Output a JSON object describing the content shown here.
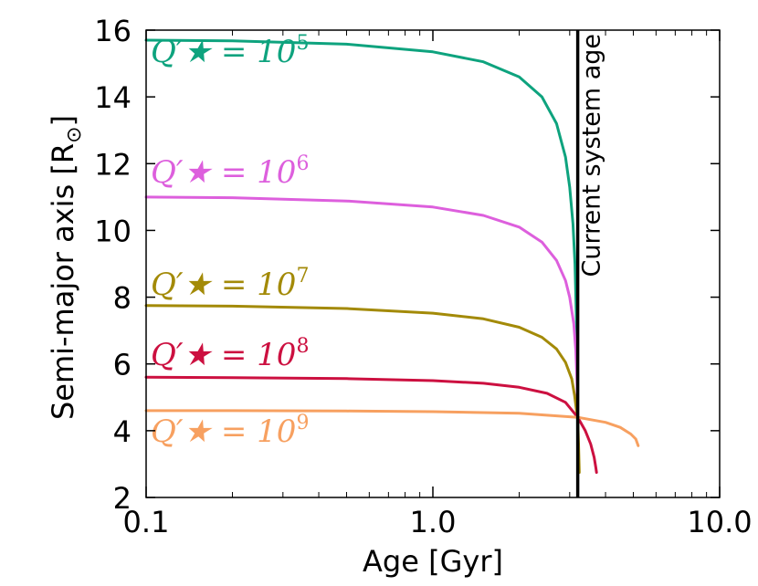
{
  "chart_data": {
    "type": "line",
    "title": "",
    "xlabel": "Age [Gyr]",
    "ylabel": "Semi-major axis [R",
    "ylabel_sub": "⊙",
    "ylabel_close": "]",
    "xscale": "log",
    "xlim": [
      0.1,
      10.0
    ],
    "ylim": [
      2,
      16
    ],
    "x_ticks": [
      0.1,
      1.0,
      10.0
    ],
    "x_tick_labels": [
      "0.1",
      "1.0",
      "10.0"
    ],
    "y_ticks": [
      2,
      4,
      6,
      8,
      10,
      12,
      14,
      16
    ],
    "y_tick_labels": [
      "2",
      "4",
      "6",
      "8",
      "10",
      "12",
      "14",
      "16"
    ],
    "vline": {
      "x": 3.2,
      "label": "Current system age",
      "color": "#000000"
    },
    "series": [
      {
        "name": "Q'★ = 10^5",
        "label_base": "Q′★ = 10",
        "label_exp": "5",
        "color": "#0ea37e",
        "x": [
          0.1,
          0.2,
          0.5,
          1.0,
          1.5,
          2.0,
          2.4,
          2.7,
          2.9,
          3.0,
          3.08,
          3.13,
          3.17,
          3.19,
          3.2
        ],
        "y": [
          15.7,
          15.68,
          15.58,
          15.35,
          15.05,
          14.6,
          14.0,
          13.2,
          12.2,
          11.3,
          10.2,
          9.0,
          7.2,
          5.6,
          2.7
        ]
      },
      {
        "name": "Q'★ = 10^6",
        "label_base": "Q′★ = 10",
        "label_exp": "6",
        "color": "#dd5fdd",
        "x": [
          0.1,
          0.2,
          0.5,
          1.0,
          1.5,
          2.0,
          2.4,
          2.7,
          2.9,
          3.0,
          3.1,
          3.15,
          3.18,
          3.2
        ],
        "y": [
          11.0,
          10.98,
          10.88,
          10.7,
          10.45,
          10.1,
          9.65,
          9.1,
          8.5,
          8.0,
          7.2,
          6.4,
          5.5,
          4.4
        ]
      },
      {
        "name": "Q'★ = 10^7",
        "label_base": "Q′★ = 10",
        "label_exp": "7",
        "color": "#a38a08",
        "x": [
          0.1,
          0.2,
          0.5,
          1.0,
          1.5,
          2.0,
          2.4,
          2.7,
          2.9,
          3.05,
          3.12,
          3.17,
          3.2,
          3.22,
          3.24
        ],
        "y": [
          7.75,
          7.73,
          7.66,
          7.52,
          7.35,
          7.1,
          6.8,
          6.45,
          6.05,
          5.55,
          5.05,
          4.6,
          4.35,
          3.6,
          2.75
        ]
      },
      {
        "name": "Q'★ = 10^8",
        "label_base": "Q′★ = 10",
        "label_exp": "8",
        "color": "#cc1040",
        "x": [
          0.1,
          0.2,
          0.5,
          1.0,
          1.5,
          2.0,
          2.5,
          2.9,
          3.2,
          3.4,
          3.55,
          3.65,
          3.7,
          3.72
        ],
        "y": [
          5.6,
          5.59,
          5.56,
          5.5,
          5.42,
          5.3,
          5.12,
          4.85,
          4.4,
          4.0,
          3.6,
          3.2,
          2.9,
          2.75
        ]
      },
      {
        "name": "Q'★ = 10^9",
        "label_base": "Q′★ = 10",
        "label_exp": "9",
        "color": "#f7a060",
        "x": [
          0.1,
          0.2,
          0.5,
          1.0,
          2.0,
          3.2,
          4.0,
          4.5,
          4.9,
          5.1,
          5.2
        ],
        "y": [
          4.6,
          4.6,
          4.59,
          4.57,
          4.52,
          4.4,
          4.25,
          4.1,
          3.9,
          3.75,
          3.55
        ]
      }
    ]
  }
}
